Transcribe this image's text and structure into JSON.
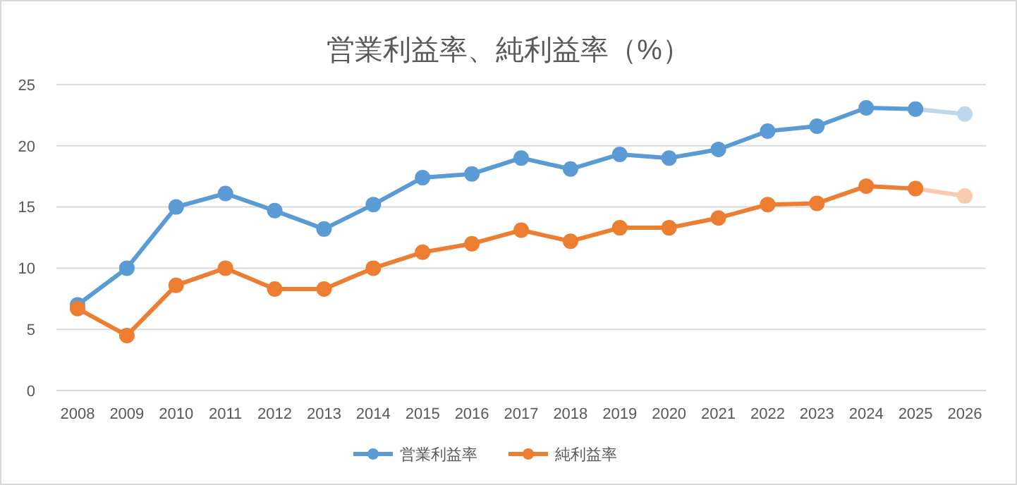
{
  "chart_data": {
    "type": "line",
    "title": "営業利益率、純利益率（%）",
    "categories": [
      "2008",
      "2009",
      "2010",
      "2011",
      "2012",
      "2013",
      "2014",
      "2015",
      "2016",
      "2017",
      "2018",
      "2019",
      "2020",
      "2021",
      "2022",
      "2023",
      "2024",
      "2025",
      "2026"
    ],
    "series": [
      {
        "color": "#bdd7ee",
        "values": [
          null,
          null,
          null,
          null,
          null,
          null,
          null,
          null,
          null,
          null,
          null,
          null,
          null,
          null,
          null,
          null,
          null,
          23.0,
          22.6
        ]
      },
      {
        "color": "#f8cbad",
        "values": [
          null,
          null,
          null,
          null,
          null,
          null,
          null,
          null,
          null,
          null,
          null,
          null,
          null,
          null,
          null,
          null,
          null,
          16.5,
          15.9
        ]
      },
      {
        "name": "営業利益率",
        "color": "#5b9bd5",
        "values": [
          7.0,
          10.0,
          15.0,
          16.1,
          14.7,
          13.2,
          15.2,
          17.4,
          17.7,
          19.0,
          18.1,
          19.3,
          19.0,
          19.7,
          21.2,
          21.6,
          23.1,
          23.0,
          null
        ]
      },
      {
        "name": "純利益率",
        "color": "#ed7d31",
        "values": [
          6.7,
          4.5,
          8.6,
          10.0,
          8.3,
          8.3,
          10.0,
          11.3,
          12.0,
          13.1,
          12.2,
          13.3,
          13.3,
          14.1,
          15.2,
          15.3,
          16.7,
          16.5,
          null
        ]
      }
    ],
    "ylim": [
      0,
      25
    ],
    "yticks": [
      0,
      5,
      10,
      15,
      20,
      25
    ],
    "grid": "y",
    "legend": "bottom",
    "marker": "circle",
    "line_style": "solid"
  }
}
